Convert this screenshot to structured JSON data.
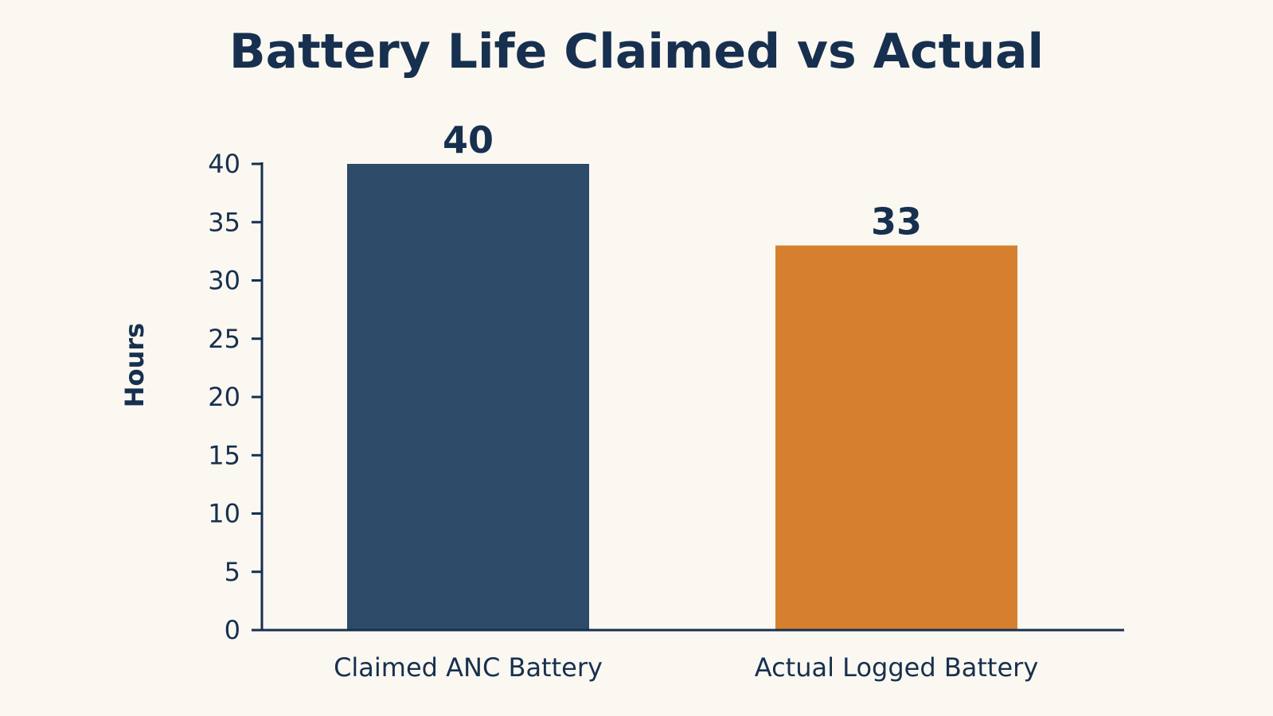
{
  "chart_data": {
    "type": "bar",
    "title": "Battery Life Claimed vs Actual",
    "xlabel": "",
    "ylabel": "Hours",
    "categories": [
      "Claimed ANC Battery",
      "Actual Logged Battery"
    ],
    "values": [
      40,
      33
    ],
    "value_labels": [
      "40",
      "33"
    ],
    "bar_colors": [
      "#2d4a69",
      "#d6802f"
    ],
    "ylim": [
      0,
      40
    ],
    "yticks": [
      0,
      5,
      10,
      15,
      20,
      25,
      30,
      35,
      40
    ],
    "grid": false,
    "legend": "none"
  },
  "colors": {
    "background": "#fbf8f1",
    "text": "#17304f",
    "axis": "#17304f"
  }
}
